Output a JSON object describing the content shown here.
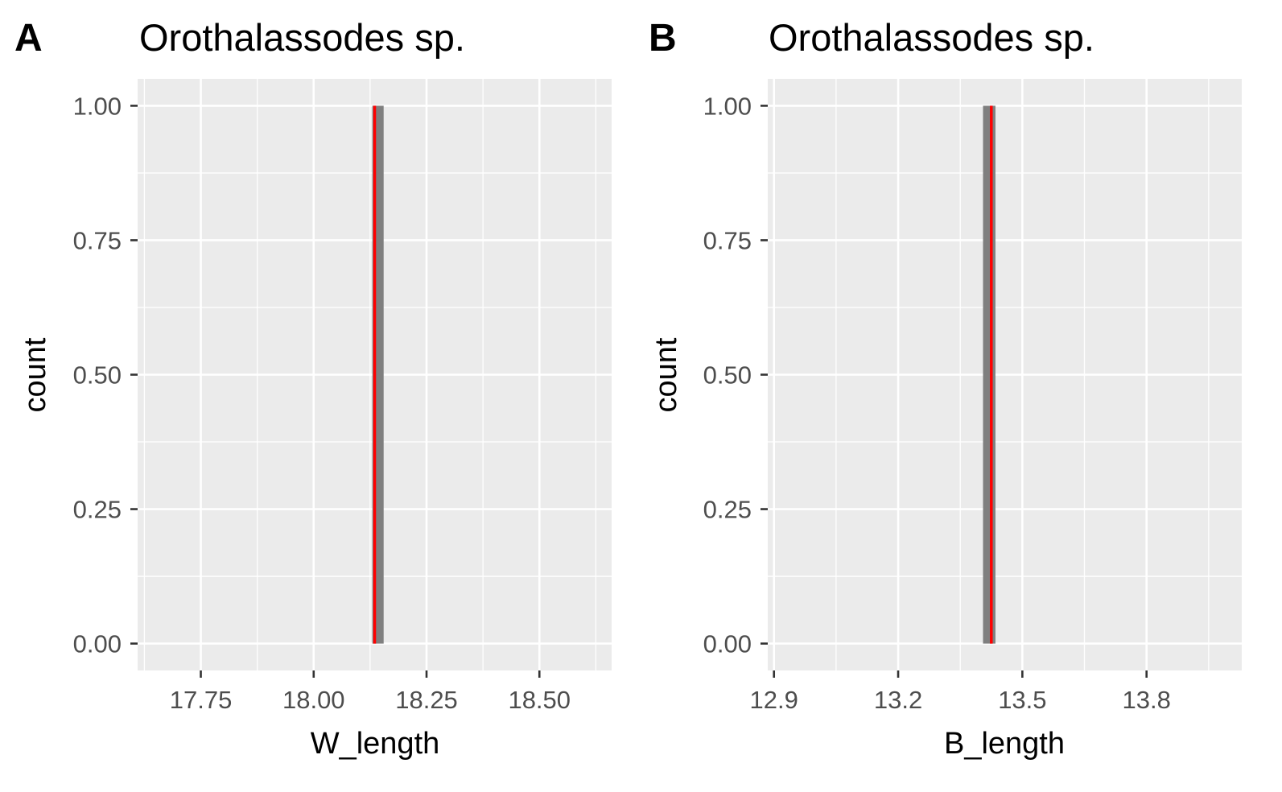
{
  "chart_data": [
    {
      "type": "bar",
      "panel_tag": "A",
      "title": "Orothalassodes sp.",
      "xlabel": "W_length",
      "ylabel": "count",
      "xlim": [
        17.61,
        18.66
      ],
      "ylim": [
        -0.05,
        1.05
      ],
      "x_ticks": [
        17.75,
        18.0,
        18.25,
        18.5
      ],
      "x_tick_labels": [
        "17.75",
        "18.00",
        "18.25",
        "18.50"
      ],
      "y_ticks": [
        0,
        0.25,
        0.5,
        0.75,
        1.0
      ],
      "y_tick_labels": [
        "0.00",
        "0.25",
        "0.50",
        "0.75",
        "1.00"
      ],
      "bins": [
        {
          "xmin": 18.13,
          "xmax": 18.155,
          "count": 1
        }
      ],
      "reference_line_x": 18.135,
      "grid": true,
      "colors": {
        "panel_bg": "#ebebeb",
        "grid": "#ffffff",
        "bar": "#7f7f7f",
        "reference_line": "#ff0000"
      }
    },
    {
      "type": "bar",
      "panel_tag": "B",
      "title": "Orothalassodes sp.",
      "xlabel": "B_length",
      "ylabel": "count",
      "xlim": [
        12.885,
        14.03
      ],
      "ylim": [
        -0.05,
        1.05
      ],
      "x_ticks": [
        12.9,
        13.2,
        13.5,
        13.8
      ],
      "x_tick_labels": [
        "12.9",
        "13.2",
        "13.5",
        "13.8"
      ],
      "y_ticks": [
        0,
        0.25,
        0.5,
        0.75,
        1.0
      ],
      "y_tick_labels": [
        "0.00",
        "0.25",
        "0.50",
        "0.75",
        "1.00"
      ],
      "bins": [
        {
          "xmin": 13.405,
          "xmax": 13.435,
          "count": 1
        }
      ],
      "reference_line_x": 13.425,
      "grid": true,
      "colors": {
        "panel_bg": "#ebebeb",
        "grid": "#ffffff",
        "bar": "#7f7f7f",
        "reference_line": "#ff0000"
      }
    }
  ]
}
